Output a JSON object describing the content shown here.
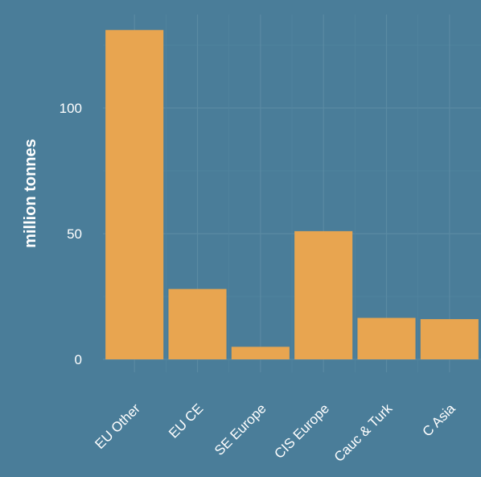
{
  "chart_data": {
    "type": "bar",
    "categories": [
      "EU Other",
      "EU CE",
      "SE Europe",
      "CIS Europe",
      "Cauc & Turk",
      "C Asia"
    ],
    "values": [
      131,
      28,
      5,
      51,
      16.5,
      16
    ],
    "title": "",
    "xlabel": "",
    "ylabel": "million tonnes",
    "ylim": [
      0,
      140
    ],
    "yticks": [
      0,
      50,
      100
    ],
    "grid": true,
    "bar_color": "#e8a550",
    "background_color": "#4a7d99"
  }
}
